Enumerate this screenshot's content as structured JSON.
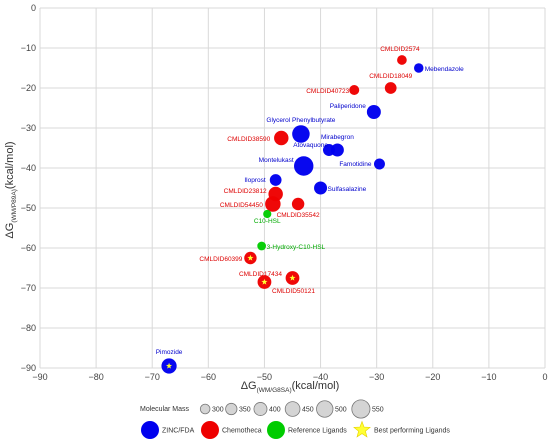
{
  "chart_data": {
    "type": "scatter",
    "title": "",
    "xlabel": "ΔG",
    "xlabel_sub": "(WM/G8SA)",
    "xlabel_unit": "(kcal/mol)",
    "ylabel": "ΔG",
    "ylabel_sub": "(WM/P89A)",
    "ylabel_unit": "(kcal/mol)",
    "xlim": [
      -90,
      0
    ],
    "ylim": [
      -90,
      0
    ],
    "xticks": [
      -90,
      -80,
      -70,
      -60,
      -50,
      -40,
      -30,
      -20,
      -10,
      0
    ],
    "yticks": [
      0,
      -10,
      -20,
      -30,
      -40,
      -50,
      -60,
      -70,
      -80,
      -90
    ],
    "xtick_labels": [
      "−90",
      "−80",
      "−70",
      "−60",
      "−50",
      "−40",
      "−30",
      "−20",
      "−10",
      "0"
    ],
    "ytick_labels": [
      "0",
      "−10",
      "−20",
      "−30",
      "−40",
      "−50",
      "−60",
      "−70",
      "−80",
      "−90"
    ],
    "grid": true,
    "colors": {
      "ZINC/FDA": "#0000ee",
      "Chemotheca": "#ee0000",
      "Reference Ligands": "#00cc00",
      "best": "#ffff33",
      "grid": "#d9d9d9",
      "label_blue": "#0000cc",
      "label_red": "#dd0000",
      "label_green": "#00aa00"
    },
    "series": [
      {
        "name": "ZINC/FDA",
        "points": [
          {
            "label": "Mebendazole",
            "x": -22.5,
            "y": -15,
            "mass": 295
          },
          {
            "label": "Paliperidone",
            "x": -30.5,
            "y": -26,
            "mass": 426
          },
          {
            "label": "Glycerol Phenylbutyrate",
            "x": -43.5,
            "y": -31.5,
            "mass": 530
          },
          {
            "label": "Atovaquone",
            "x": -38.5,
            "y": -35.5,
            "mass": 366
          },
          {
            "label": "Mirabegron",
            "x": -37,
            "y": -35.5,
            "mass": 396
          },
          {
            "label": "Famotidine",
            "x": -29.5,
            "y": -39,
            "mass": 337
          },
          {
            "label": "Montelukast",
            "x": -43,
            "y": -39.5,
            "mass": 586
          },
          {
            "label": "Iloprost",
            "x": -48,
            "y": -43,
            "mass": 360
          },
          {
            "label": "Sulfasalazine",
            "x": -40,
            "y": -45,
            "mass": 398
          },
          {
            "label": "Pimozide",
            "x": -67,
            "y": -89.5,
            "mass": 462,
            "best": true
          }
        ]
      },
      {
        "name": "Chemotheca",
        "points": [
          {
            "label": "CMLDID2574",
            "x": -25.5,
            "y": -13,
            "mass": 300
          },
          {
            "label": "CMLDID18049",
            "x": -27.5,
            "y": -20,
            "mass": 360
          },
          {
            "label": "CMLDID40723",
            "x": -34,
            "y": -20.5,
            "mass": 310
          },
          {
            "label": "CMLDID38590",
            "x": -47,
            "y": -32.5,
            "mass": 440
          },
          {
            "label": "CMLDID23812",
            "x": -48,
            "y": -46.5,
            "mass": 440
          },
          {
            "label": "CMLDID54450",
            "x": -48.5,
            "y": -49,
            "mass": 470
          },
          {
            "label": "CMLDID35542",
            "x": -44,
            "y": -49,
            "mass": 380
          },
          {
            "label": "CMLDID60399",
            "x": -52.5,
            "y": -62.5,
            "mass": 380,
            "best": true
          },
          {
            "label": "CMLDID17434",
            "x": -50,
            "y": -68.5,
            "mass": 420,
            "best": true
          },
          {
            "label": "CMLDID50121",
            "x": -45,
            "y": -67.5,
            "mass": 420,
            "best": true
          }
        ]
      },
      {
        "name": "Reference Ligands",
        "points": [
          {
            "label": "C10-HSL",
            "x": -49.5,
            "y": -51.5,
            "mass": 255
          },
          {
            "label": "3-Hydroxy-C10-HSL",
            "x": -50.5,
            "y": -59.5,
            "mass": 271
          }
        ]
      }
    ],
    "size_legend": {
      "title": "Molecular Mass",
      "values": [
        300,
        350,
        400,
        450,
        500,
        550
      ]
    },
    "color_legend": [
      {
        "label": "ZINC/FDA",
        "color": "#0000ee",
        "shape": "circle"
      },
      {
        "label": "Chemotheca",
        "color": "#ee0000",
        "shape": "circle"
      },
      {
        "label": "Reference Ligands",
        "color": "#00cc00",
        "shape": "circle"
      },
      {
        "label": "Best performing Ligands",
        "color": "#ffff33",
        "shape": "star"
      }
    ],
    "legend_position": "bottom"
  }
}
